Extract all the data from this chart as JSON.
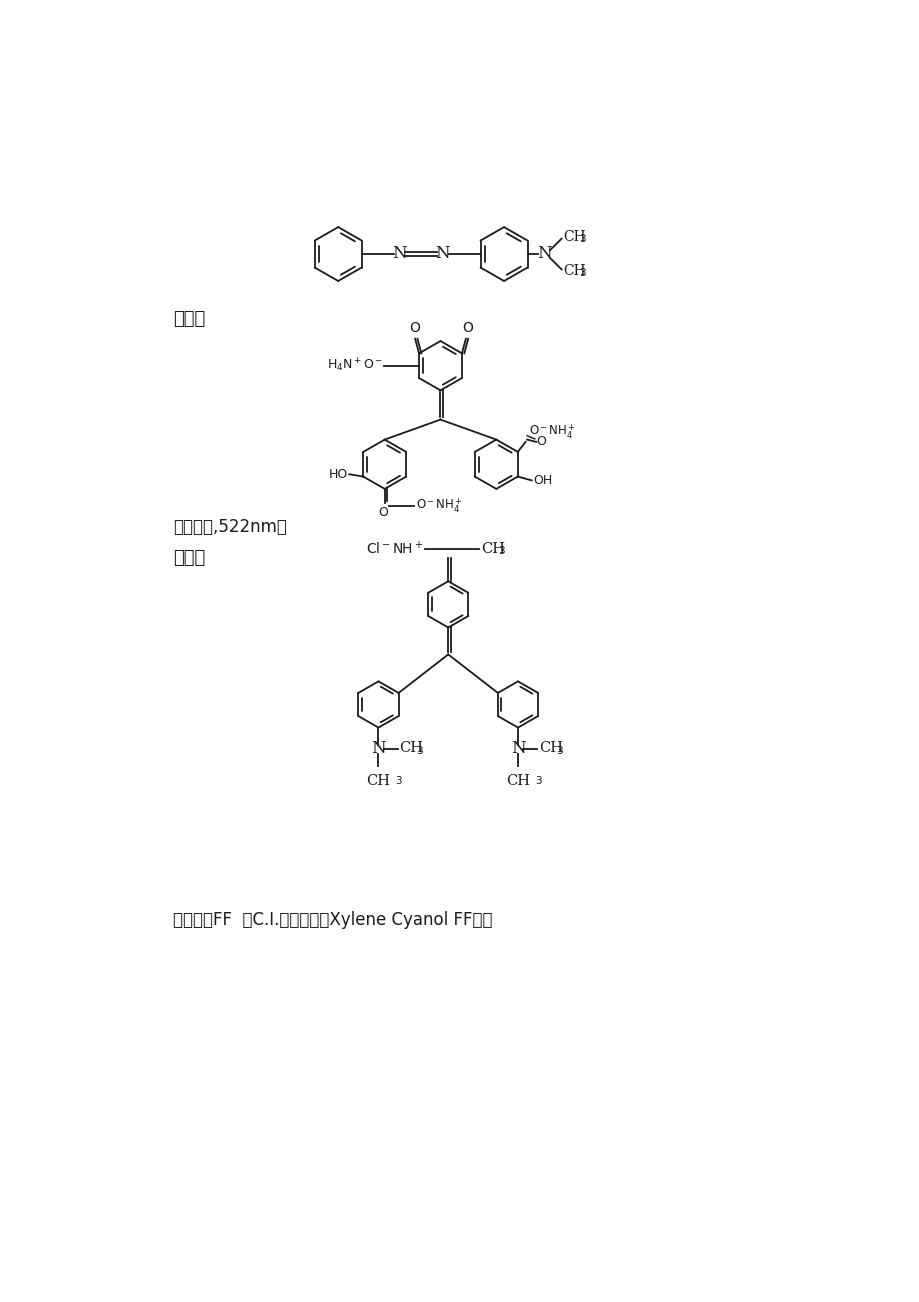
{
  "bg_color": "#ffffff",
  "text_color": "#1a1a1a",
  "line_color": "#1a1a1a",
  "label1": "铝试剂",
  "label2": "（水溶液,522nm）",
  "label3": "甲基紫",
  "label4": "二甲苯青FF  （C.I.二甲苯蓝，Xylene Cyanol FF）：",
  "fig_width": 9.2,
  "fig_height": 13.02,
  "dpi": 100
}
